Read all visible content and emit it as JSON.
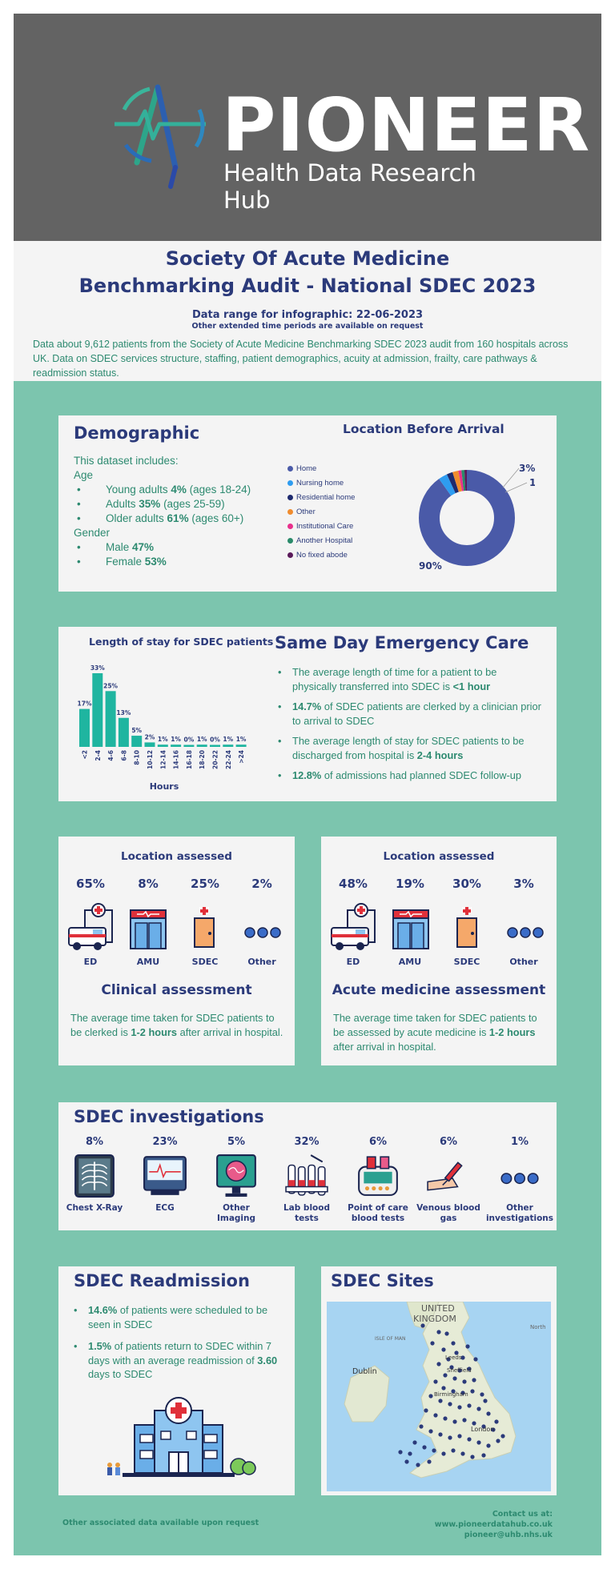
{
  "header": {
    "logo_word": "PIONEER",
    "logo_sub": "Health Data Research Hub",
    "bg_color": "#636363"
  },
  "intro": {
    "title_line1": "Society Of Acute Medicine",
    "title_line2": "Benchmarking Audit - National SDEC 2023",
    "range": "Data range for infographic: 22-06-2023",
    "range_sub": "Other extended time periods are available on request",
    "description": "Data about 9,612 patients from the Society of Acute Medicine Benchmarking SDEC 2023 audit from 160 hospitals across UK. Data on SDEC services structure, staffing, patient demographics, acuity at admission, frailty, care pathways & readmission status."
  },
  "demographic": {
    "title": "Demographic",
    "includes": "This dataset includes:",
    "age_label": "Age",
    "age": [
      {
        "pre": "Young adults ",
        "val": "4%",
        "post": " (ages 18-24)"
      },
      {
        "pre": "Adults ",
        "val": "35%",
        "post": " (ages 25-59)"
      },
      {
        "pre": "Older adults ",
        "val": "61%",
        "post": " (ages 60+)"
      }
    ],
    "gender_label": "Gender",
    "gender": [
      {
        "pre": "Male ",
        "val": "47%",
        "post": ""
      },
      {
        "pre": "Female ",
        "val": "53%",
        "post": ""
      }
    ]
  },
  "location_before": {
    "title": "Location Before Arrival",
    "legend": [
      {
        "label": "Home",
        "color": "#4a5aa8"
      },
      {
        "label": "Nursing home",
        "color": "#2e9cf0"
      },
      {
        "label": "Residential home",
        "color": "#1e2a6e"
      },
      {
        "label": "Other",
        "color": "#f08c2e"
      },
      {
        "label": "Institutional Care",
        "color": "#e8308c"
      },
      {
        "label": "Another Hospital",
        "color": "#2a8a6a"
      },
      {
        "label": "No fixed abode",
        "color": "#5a1a5a"
      }
    ],
    "labels": {
      "home": "90%",
      "nursing": "3%",
      "other": "1%"
    }
  },
  "chart_data": {
    "type": "bar",
    "title": "Length of stay for SDEC patients",
    "xlabel": "Hours",
    "ylabel": "",
    "categories": [
      "<2",
      "2-4",
      "4-6",
      "6-8",
      "8-10",
      "10-12",
      "12-14",
      "14-16",
      "16-18",
      "18-20",
      "20-22",
      "22-24",
      ">24"
    ],
    "values": [
      17,
      33,
      25,
      13,
      5,
      2,
      1,
      1,
      0,
      1,
      0,
      1,
      1
    ],
    "value_labels": [
      "17%",
      "33%",
      "25%",
      "13%",
      "5%",
      "2%",
      "1%",
      "1%",
      "0%",
      "1%",
      "0%",
      "1%",
      "1%"
    ],
    "ylim": [
      0,
      33
    ],
    "color": "#1fb5a0",
    "grid": false
  },
  "sdec": {
    "title": "Same Day Emergency Care",
    "items": [
      {
        "pre": "The average length of time for a patient to be physically transferred into SDEC is ",
        "val": "<1 hour",
        "post": ""
      },
      {
        "pre": "",
        "val": "14.7%",
        "post": " of SDEC patients are clerked by a clinician prior to arrival to SDEC"
      },
      {
        "pre": "The average length of stay for SDEC patients to be discharged from hospital is ",
        "val": "2-4 hours",
        "post": ""
      },
      {
        "pre": "",
        "val": "12.8%",
        "post": " of admissions had planned SDEC follow-up"
      }
    ]
  },
  "clinical": {
    "loc_title": "Location assessed",
    "pcts": [
      "65%",
      "8%",
      "25%",
      "2%"
    ],
    "labels": [
      "ED",
      "AMU",
      "SDEC",
      "Other"
    ],
    "title": "Clinical assessment",
    "text_pre": "The average time taken for SDEC patients to be clerked is ",
    "text_val": "1-2 hours",
    "text_post": " after arrival in hospital."
  },
  "acute": {
    "loc_title": "Location assessed",
    "pcts": [
      "48%",
      "19%",
      "30%",
      "3%"
    ],
    "labels": [
      "ED",
      "AMU",
      "SDEC",
      "Other"
    ],
    "title": "Acute medicine assessment",
    "text_pre": "The average time taken for SDEC patients to be assessed by acute medicine is ",
    "text_val": "1-2 hours",
    "text_post": " after arrival in hospital."
  },
  "investigations": {
    "title": "SDEC investigations",
    "items": [
      {
        "pct": "8%",
        "l1": "Chest X-Ray",
        "l2": ""
      },
      {
        "pct": "23%",
        "l1": "ECG",
        "l2": ""
      },
      {
        "pct": "5%",
        "l1": "Other",
        "l2": "Imaging"
      },
      {
        "pct": "32%",
        "l1": "Lab blood",
        "l2": "tests"
      },
      {
        "pct": "6%",
        "l1": "Point of care",
        "l2": "blood tests"
      },
      {
        "pct": "6%",
        "l1": "Venous blood",
        "l2": "gas"
      },
      {
        "pct": "1%",
        "l1": "Other",
        "l2": "investigations"
      }
    ]
  },
  "readmission": {
    "title": "SDEC Readmission",
    "i1_val": "14.6%",
    "i1_post": " of patients were scheduled to be seen in SDEC",
    "i2_val": "1.5%",
    "i2_mid": " of patients return to SDEC within 7 days with an average readmission of ",
    "i2_val2": "3.60",
    "i2_post": " days to SDEC"
  },
  "sites": {
    "title": "SDEC Sites",
    "map_labels": {
      "uk1": "UNITED",
      "uk2": "KINGDOM",
      "dublin": "Dublin",
      "isle": "ISLE OF MAN",
      "leeds": "Leeds",
      "sheffield": "Sheffield",
      "birmingham": "Birmingham",
      "london": "London",
      "north": "North"
    }
  },
  "footer": {
    "left": "Other associated data available upon request",
    "contact": "Contact us at:",
    "web": "www.pioneerdatahub.co.uk",
    "email": "pioneer@uhb.nhs.uk"
  }
}
